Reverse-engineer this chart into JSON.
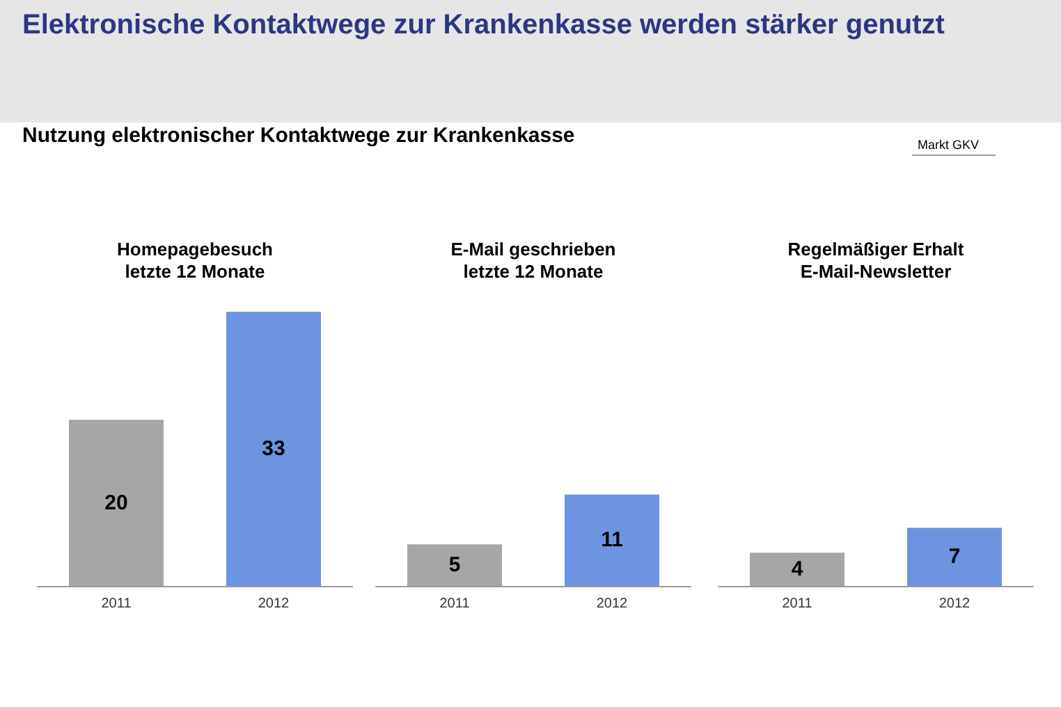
{
  "chart_data": [
    {
      "type": "bar",
      "title": "Homepagebesuch\nletzte 12 Monate",
      "annotations": [
        "Elektronische Kontaktwege zur Krankenkasse werden stärker genutzt",
        "Nutzung elektronischer Kontaktwege zur Krankenkasse",
        "Markt GKV"
      ],
      "categories": [
        "2011",
        "2012"
      ],
      "values": [
        20,
        33
      ],
      "colors": [
        "#a6a6a6",
        "#6d94e0"
      ],
      "data_labels": true
    },
    {
      "type": "bar",
      "title": "E-Mail geschrieben\nletzte 12 Monate",
      "categories": [
        "2011",
        "2012"
      ],
      "values": [
        5,
        11
      ],
      "colors": [
        "#a6a6a6",
        "#6d94e0"
      ],
      "data_labels": true
    },
    {
      "type": "bar",
      "title": "Regelmäßiger Erhalt\nE-Mail-Newsletter",
      "categories": [
        "2011",
        "2012"
      ],
      "values": [
        4,
        7
      ],
      "colors": [
        "#a6a6a6",
        "#6d94e0"
      ],
      "data_labels": true
    }
  ]
}
